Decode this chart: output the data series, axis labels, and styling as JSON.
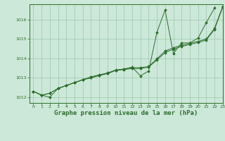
{
  "title": "Graphe pression niveau de la mer (hPa)",
  "background_color": "#cce8d8",
  "grid_color": "#9dc8b0",
  "line_color": "#2d6e2d",
  "xlim": [
    -0.5,
    23
  ],
  "ylim": [
    1011.7,
    1016.8
  ],
  "xticks": [
    0,
    1,
    2,
    3,
    4,
    5,
    6,
    7,
    8,
    9,
    10,
    11,
    12,
    13,
    14,
    15,
    16,
    17,
    18,
    19,
    20,
    21,
    22,
    23
  ],
  "yticks": [
    1012,
    1013,
    1014,
    1015,
    1016
  ],
  "hours": [
    0,
    1,
    2,
    3,
    4,
    5,
    6,
    7,
    8,
    9,
    10,
    11,
    12,
    13,
    14,
    15,
    16,
    17,
    18,
    19,
    20,
    21,
    22,
    23
  ],
  "s1": [
    1012.3,
    1012.1,
    1012.0,
    1012.45,
    1012.6,
    1012.75,
    1012.9,
    1013.05,
    1013.15,
    1013.25,
    1013.4,
    1013.45,
    1013.55,
    1013.1,
    1013.35,
    1015.35,
    1016.5,
    1014.25,
    1014.8,
    1014.8,
    1015.05,
    1015.85,
    1016.6,
    null
  ],
  "s2": [
    1012.3,
    1012.1,
    1012.2,
    1012.45,
    1012.6,
    1012.75,
    1012.9,
    1013.0,
    1013.12,
    1013.22,
    1013.38,
    1013.45,
    1013.52,
    1013.52,
    1013.58,
    1013.98,
    1014.38,
    1014.55,
    1014.68,
    1014.78,
    1014.88,
    1015.0,
    1015.55,
    1016.7
  ],
  "s3": [
    1012.3,
    1012.1,
    1012.2,
    1012.45,
    1012.6,
    1012.75,
    1012.9,
    1013.0,
    1013.12,
    1013.22,
    1013.38,
    1013.42,
    1013.48,
    1013.48,
    1013.55,
    1013.92,
    1014.3,
    1014.48,
    1014.62,
    1014.72,
    1014.82,
    1014.95,
    1015.5,
    1016.65
  ],
  "title_fontsize": 6.5
}
